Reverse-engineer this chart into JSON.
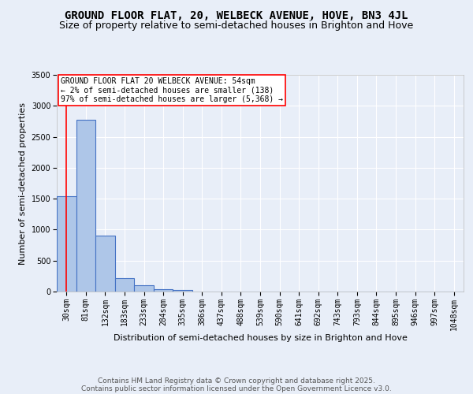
{
  "title": "GROUND FLOOR FLAT, 20, WELBECK AVENUE, HOVE, BN3 4JL",
  "subtitle": "Size of property relative to semi-detached houses in Brighton and Hove",
  "xlabel": "Distribution of semi-detached houses by size in Brighton and Hove",
  "ylabel": "Number of semi-detached properties",
  "bin_labels": [
    "30sqm",
    "81sqm",
    "132sqm",
    "183sqm",
    "233sqm",
    "284sqm",
    "335sqm",
    "386sqm",
    "437sqm",
    "488sqm",
    "539sqm",
    "590sqm",
    "641sqm",
    "692sqm",
    "743sqm",
    "793sqm",
    "844sqm",
    "895sqm",
    "946sqm",
    "997sqm",
    "1048sqm"
  ],
  "bin_values": [
    1535,
    2780,
    910,
    220,
    105,
    35,
    20,
    0,
    0,
    0,
    0,
    0,
    0,
    0,
    0,
    0,
    0,
    0,
    0,
    0,
    0
  ],
  "bar_color": "#aec6e8",
  "bar_edge_color": "#4472c4",
  "bar_linewidth": 0.8,
  "annotation_text": "GROUND FLOOR FLAT 20 WELBECK AVENUE: 54sqm\n← 2% of semi-detached houses are smaller (138)\n97% of semi-detached houses are larger (5,368) →",
  "annotation_box_color": "white",
  "annotation_box_edge": "red",
  "ylim": [
    0,
    3500
  ],
  "yticks": [
    0,
    500,
    1000,
    1500,
    2000,
    2500,
    3000,
    3500
  ],
  "footer_line1": "Contains HM Land Registry data © Crown copyright and database right 2025.",
  "footer_line2": "Contains public sector information licensed under the Open Government Licence v3.0.",
  "bg_color": "#e8eef8",
  "plot_bg_color": "#e8eef8",
  "grid_color": "white",
  "title_fontsize": 10,
  "subtitle_fontsize": 9,
  "axis_label_fontsize": 8,
  "tick_fontsize": 7,
  "footer_fontsize": 6.5,
  "annotation_fontsize": 7
}
